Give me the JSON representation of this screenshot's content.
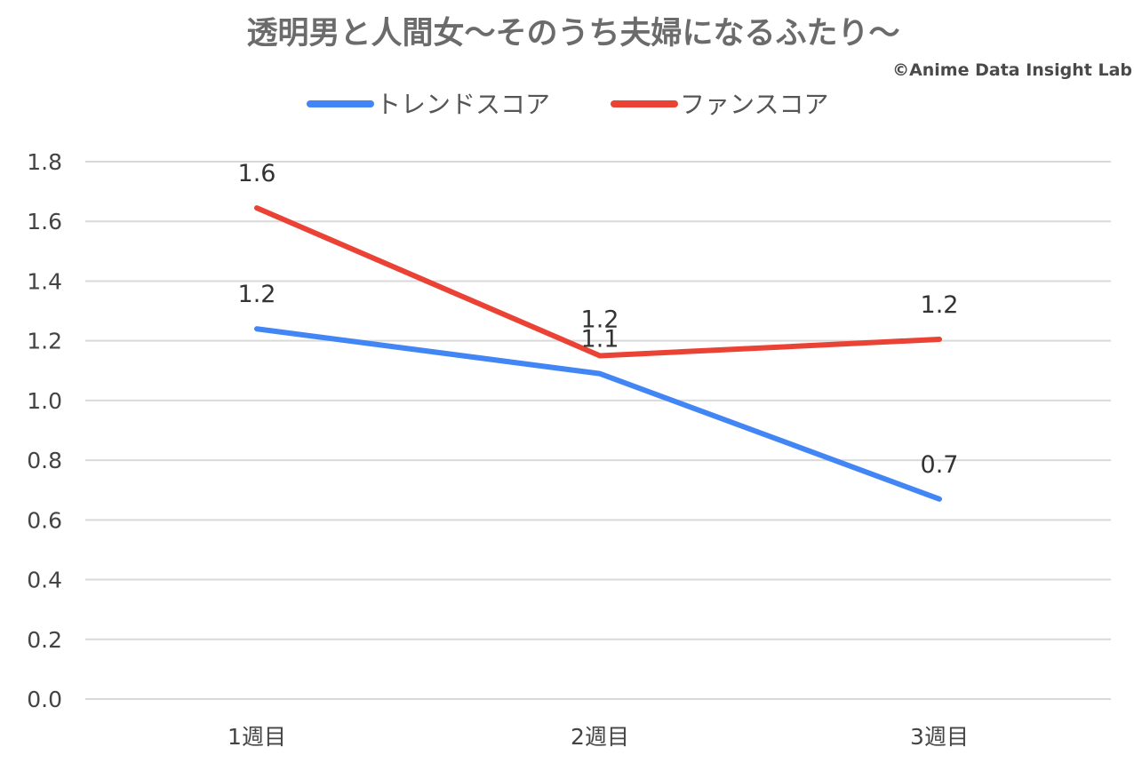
{
  "chart_data": {
    "type": "line",
    "title": "透明男と人間女～そのうち夫婦になるふたり～",
    "credit": "©Anime Data Insight Lab",
    "categories": [
      "1週目",
      "2週目",
      "3週目"
    ],
    "series": [
      {
        "name": "トレンドスコア",
        "color": "#4285f4",
        "values": [
          1.24,
          1.09,
          0.67
        ],
        "labels": [
          "1.2",
          "1.1",
          "0.7"
        ]
      },
      {
        "name": "ファンスコア",
        "color": "#ea4335",
        "values": [
          1.645,
          1.15,
          1.205
        ],
        "labels": [
          "1.6",
          "1.2",
          "1.2"
        ]
      }
    ],
    "ylim": [
      0,
      1.8
    ],
    "yticks": [
      "0.0",
      "0.2",
      "0.4",
      "0.6",
      "0.8",
      "1.0",
      "1.2",
      "1.4",
      "1.6",
      "1.8"
    ],
    "grid": true,
    "legend": "top-center",
    "xlabel": "",
    "ylabel": ""
  }
}
